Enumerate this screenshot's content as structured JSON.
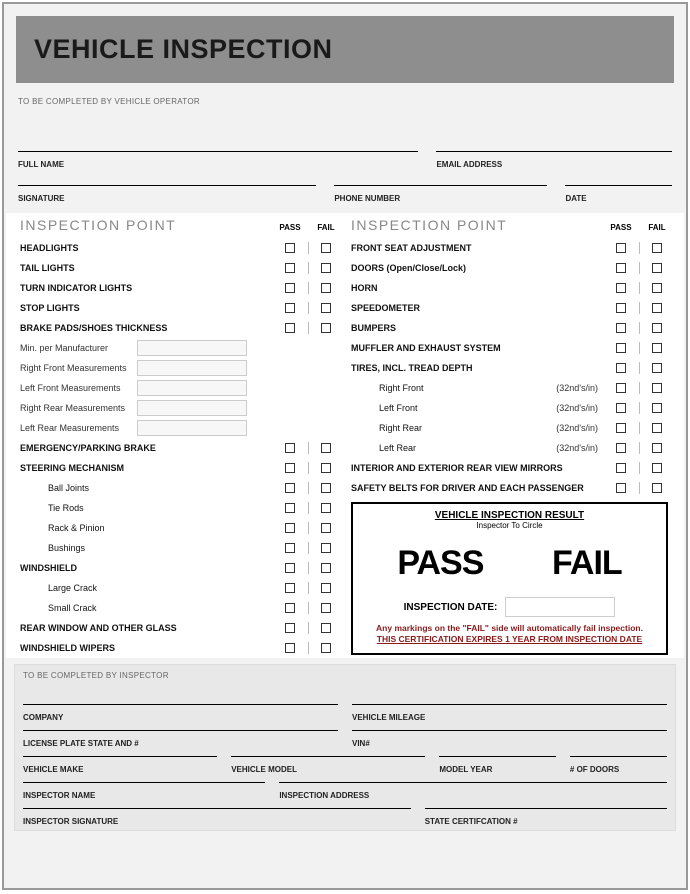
{
  "title": "VEHICLE INSPECTION",
  "operator_note": "TO BE COMPLETED BY VEHICLE OPERATOR",
  "operator_fields": {
    "full_name": "FULL NAME",
    "email": "EMAIL ADDRESS",
    "signature": "SIGNATURE",
    "phone": "PHONE NUMBER",
    "date": "DATE"
  },
  "inspection_heading": "INSPECTION POINT",
  "pass_label": "PASS",
  "fail_label": "FAIL",
  "left_points": [
    {
      "label": "HEADLIGHTS",
      "pass": true,
      "fail": true
    },
    {
      "label": "TAIL LIGHTS",
      "pass": true,
      "fail": true
    },
    {
      "label": "TURN INDICATOR LIGHTS",
      "pass": true,
      "fail": true
    },
    {
      "label": "STOP LIGHTS",
      "pass": true,
      "fail": true
    },
    {
      "label": "BRAKE PADS/SHOES THICKNESS",
      "pass": true,
      "fail": true
    }
  ],
  "measurements": [
    "Min. per Manufacturer",
    "Right Front Measurements",
    "Left Front Measurements",
    "Right Rear Measurements",
    "Left Rear Measurements"
  ],
  "left_points2": [
    {
      "label": "EMERGENCY/PARKING BRAKE",
      "pass": true,
      "fail": true
    },
    {
      "label": "STEERING MECHANISM",
      "pass": true,
      "fail": true
    },
    {
      "label": "Ball Joints",
      "sub": true,
      "pass": true,
      "fail": true
    },
    {
      "label": "Tie Rods",
      "sub": true,
      "pass": true,
      "fail": true
    },
    {
      "label": "Rack & Pinion",
      "sub": true,
      "pass": true,
      "fail": true
    },
    {
      "label": "Bushings",
      "sub": true,
      "pass": true,
      "fail": true
    },
    {
      "label": "WINDSHIELD",
      "pass": true,
      "fail": true
    },
    {
      "label": "Large Crack",
      "sub": true,
      "pass": true,
      "fail": true
    },
    {
      "label": "Small Crack",
      "sub": true,
      "pass": true,
      "fail": true
    },
    {
      "label": "REAR WINDOW AND OTHER GLASS",
      "pass": true,
      "fail": true
    },
    {
      "label": "WINDSHIELD WIPERS",
      "pass": true,
      "fail": true
    }
  ],
  "right_points": [
    {
      "label": "FRONT SEAT ADJUSTMENT",
      "pass": true,
      "fail": true
    },
    {
      "label": "DOORS (Open/Close/Lock)",
      "pass": true,
      "fail": true
    },
    {
      "label": "HORN",
      "pass": true,
      "fail": true
    },
    {
      "label": "SPEEDOMETER",
      "pass": true,
      "fail": true
    },
    {
      "label": "BUMPERS",
      "pass": true,
      "fail": true
    },
    {
      "label": "MUFFLER AND EXHAUST SYSTEM",
      "pass": true,
      "fail": true
    },
    {
      "label": "TIRES, INCL. TREAD DEPTH",
      "pass": true,
      "fail": true
    },
    {
      "label": "Right Front",
      "sub": true,
      "hint": "(32nd's/in)",
      "pass": true,
      "fail": true
    },
    {
      "label": "Left Front",
      "sub": true,
      "hint": "(32nd's/in)",
      "pass": true,
      "fail": true
    },
    {
      "label": "Right Rear",
      "sub": true,
      "hint": "(32nd's/in)",
      "pass": true,
      "fail": true
    },
    {
      "label": "Left Rear",
      "sub": true,
      "hint": "(32nd's/in)",
      "pass": true,
      "fail": true
    },
    {
      "label": "INTERIOR AND EXTERIOR REAR VIEW MIRRORS",
      "pass": true,
      "fail": true
    },
    {
      "label": "SAFETY BELTS FOR DRIVER AND EACH PASSENGER",
      "pass": true,
      "fail": true
    }
  ],
  "result": {
    "title": "VEHICLE INSPECTION RESULT",
    "subtitle": "Inspector To Circle",
    "pass": "PASS",
    "fail": "FAIL",
    "date_label": "INSPECTION DATE:",
    "warn1": "Any markings on the \"FAIL\" side will automatically fail inspection.",
    "warn2": "THIS CERTIFICATION EXPIRES 1 YEAR FROM INSPECTION DATE"
  },
  "inspector_note": "TO BE COMPLETED BY INSPECTOR",
  "inspector_fields": {
    "company": "COMPANY",
    "mileage": "VEHICLE MILEAGE",
    "plate": "LICENSE PLATE STATE AND #",
    "vin": "VIN#",
    "make": "VEHICLE MAKE",
    "model": "VEHICLE MODEL",
    "year": "MODEL YEAR",
    "doors": "# OF DOORS",
    "insp_name": "INSPECTOR NAME",
    "insp_addr": "INSPECTION ADDRESS",
    "insp_sig": "INSPECTOR SIGNATURE",
    "state_cert": "STATE CERTIFCATION #"
  }
}
